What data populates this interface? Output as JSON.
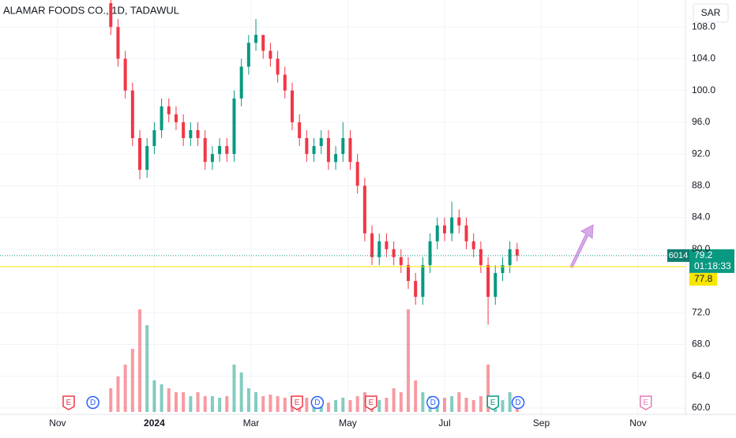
{
  "chart_data": {
    "type": "candlestick",
    "title": "ALAMAR FOODS CO., 1D, TADAWUL",
    "currency": "SAR",
    "symbol_code": "6014",
    "last_price": 79.2,
    "countdown": "01:18:33",
    "marked_price": 77.8,
    "up_color": "#089981",
    "down_color": "#f23645",
    "xlim": [
      -1.19,
      12.98
    ],
    "xticks": [
      {
        "value": 0,
        "label": "Nov"
      },
      {
        "value": 2,
        "label": "2024"
      },
      {
        "value": 4,
        "label": "Mar"
      },
      {
        "value": 6,
        "label": "May"
      },
      {
        "value": 8,
        "label": "Jul"
      },
      {
        "value": 10,
        "label": "Sep"
      },
      {
        "value": 12,
        "label": "Nov"
      }
    ],
    "ylim": [
      59.2,
      111.4
    ],
    "yticks": [
      {
        "value": 60,
        "label": "60.0"
      },
      {
        "value": 64,
        "label": "64.0"
      },
      {
        "value": 68,
        "label": "68.0"
      },
      {
        "value": 72,
        "label": "72.0"
      },
      {
        "value": 80,
        "label": "80.0"
      },
      {
        "value": 84,
        "label": "84.0"
      },
      {
        "value": 88,
        "label": "88.0"
      },
      {
        "value": 92,
        "label": "92.0"
      },
      {
        "value": 96,
        "label": "96.0"
      },
      {
        "value": 100,
        "label": "100.0"
      },
      {
        "value": 104,
        "label": "104.0"
      },
      {
        "value": 108,
        "label": "108.0"
      }
    ],
    "grid": true,
    "x": [
      1.1,
      1.25,
      1.4,
      1.55,
      1.7,
      1.85,
      2.0,
      2.15,
      2.3,
      2.45,
      2.6,
      2.75,
      2.9,
      3.05,
      3.2,
      3.35,
      3.5,
      3.65,
      3.8,
      3.95,
      4.1,
      4.25,
      4.4,
      4.55,
      4.7,
      4.85,
      5.0,
      5.15,
      5.3,
      5.45,
      5.6,
      5.75,
      5.9,
      6.05,
      6.2,
      6.35,
      6.5,
      6.65,
      6.8,
      6.95,
      7.1,
      7.25,
      7.4,
      7.55,
      7.7,
      7.85,
      8.0,
      8.15,
      8.3,
      8.45,
      8.6,
      8.75,
      8.9,
      9.05,
      9.2,
      9.35,
      9.5
    ],
    "open": [
      111,
      108,
      104,
      100,
      94,
      90,
      93,
      95,
      98,
      97,
      96,
      94,
      95,
      94,
      91,
      92,
      93,
      92,
      99,
      103,
      106,
      107,
      105,
      104,
      102,
      100,
      96,
      94,
      92,
      93,
      94,
      91,
      92,
      94,
      91,
      88,
      82,
      79,
      81,
      80,
      79,
      78,
      76,
      74,
      78,
      81,
      83,
      82,
      84,
      83,
      81,
      80,
      78,
      74,
      77,
      78,
      80
    ],
    "high": [
      111.5,
      109,
      105,
      101,
      95,
      94,
      96,
      99,
      99,
      98,
      97,
      96,
      96,
      95,
      93,
      94,
      94,
      100,
      104,
      107,
      109,
      107,
      106,
      105,
      103,
      101,
      97,
      95,
      94,
      95,
      95,
      93,
      96,
      95,
      92,
      89,
      83,
      82,
      82,
      81,
      80,
      79,
      77,
      79,
      82,
      84,
      84,
      86,
      85,
      84,
      82,
      81,
      79,
      78,
      79,
      81,
      80.8
    ],
    "low": [
      107,
      103,
      99,
      93,
      88.8,
      89,
      92,
      94,
      96,
      95,
      93,
      93,
      93,
      90,
      90,
      91,
      91,
      91,
      98,
      102,
      105,
      104,
      103,
      101,
      99,
      95,
      93,
      91,
      91,
      92,
      90,
      90,
      91,
      90,
      87,
      81,
      78,
      78,
      79,
      78,
      77,
      75,
      73,
      73,
      77,
      80,
      81,
      81,
      82,
      80,
      79,
      77,
      70.5,
      73,
      76,
      77,
      78.5
    ],
    "close": [
      108,
      104,
      100,
      94,
      90,
      93,
      95,
      98,
      97,
      96,
      94,
      95,
      94,
      91,
      92,
      93,
      92,
      99,
      103,
      106,
      107,
      105,
      104,
      102,
      100,
      96,
      94,
      92,
      93,
      94,
      91,
      92,
      94,
      91,
      88,
      82,
      79,
      81,
      80,
      79,
      78,
      76,
      74,
      78,
      81,
      83,
      82,
      84,
      83,
      81,
      80,
      78,
      74,
      77,
      78,
      80,
      79.2
    ],
    "volume": [
      30,
      45,
      60,
      80,
      130,
      110,
      40,
      35,
      30,
      25,
      25,
      20,
      25,
      20,
      20,
      18,
      20,
      60,
      50,
      30,
      25,
      20,
      22,
      20,
      18,
      20,
      20,
      18,
      15,
      15,
      12,
      15,
      18,
      15,
      20,
      25,
      20,
      15,
      18,
      30,
      25,
      130,
      40,
      25,
      20,
      15,
      18,
      20,
      25,
      18,
      15,
      20,
      60,
      20,
      15,
      25,
      15
    ],
    "events": [
      {
        "label": "E",
        "x": 0.23,
        "color": "#f23645"
      },
      {
        "label": "D",
        "x": 0.73,
        "color": "#2962ff"
      },
      {
        "label": "E",
        "x": 4.95,
        "color": "#f23645"
      },
      {
        "label": "D",
        "x": 5.37,
        "color": "#2962ff"
      },
      {
        "label": "E",
        "x": 6.48,
        "color": "#f23645"
      },
      {
        "label": "D",
        "x": 7.76,
        "color": "#2962ff"
      },
      {
        "label": "E",
        "x": 9.0,
        "color": "#089981"
      },
      {
        "label": "D",
        "x": 9.52,
        "color": "#2962ff"
      },
      {
        "label": "E",
        "x": 12.16,
        "color": "#e27cb8"
      }
    ]
  }
}
